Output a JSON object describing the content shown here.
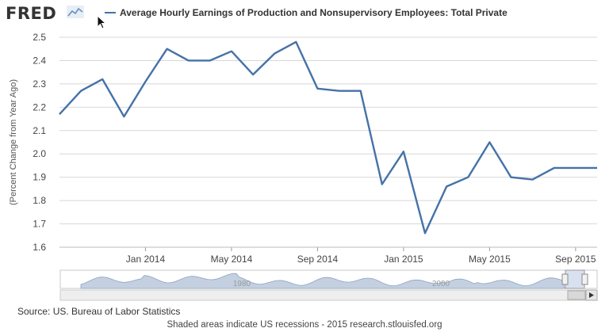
{
  "header": {
    "logo_text": "FRED"
  },
  "legend": {
    "label": "Average Hourly Earnings of Production and Nonsupervisory Employees: Total Private"
  },
  "navigator": {
    "labels": [
      "1980",
      "2000"
    ]
  },
  "footer": {
    "source": "Source: US. Bureau of Labor Statistics",
    "footnote": "Shaded areas indicate US recessions - 2015 research.stlouisfed.org"
  },
  "colors": {
    "series": "#4572a7",
    "grid": "#d8d8d8",
    "navigator_fill": "#c4d0e0"
  },
  "chart_data": {
    "type": "line",
    "ylabel": "(Percent Change from Year Ago)",
    "ylim": [
      1.6,
      2.5
    ],
    "yticks": [
      "1.6",
      "1.7",
      "1.8",
      "1.9",
      "2.0",
      "2.1",
      "2.2",
      "2.3",
      "2.4",
      "2.5"
    ],
    "xticks": [
      "Jan 2014",
      "May 2014",
      "Sep 2014",
      "Jan 2015",
      "May 2015",
      "Sep 2015"
    ],
    "x": [
      "2013-09",
      "2013-10",
      "2013-11",
      "2013-12",
      "2014-01",
      "2014-02",
      "2014-03",
      "2014-04",
      "2014-05",
      "2014-06",
      "2014-07",
      "2014-08",
      "2014-09",
      "2014-10",
      "2014-11",
      "2014-12",
      "2015-01",
      "2015-02",
      "2015-03",
      "2015-04",
      "2015-05",
      "2015-06",
      "2015-07",
      "2015-08",
      "2015-09",
      "2015-10"
    ],
    "series": [
      {
        "name": "Average Hourly Earnings of Production and Nonsupervisory Employees: Total Private",
        "values": [
          2.17,
          2.27,
          2.32,
          2.16,
          2.31,
          2.45,
          2.4,
          2.4,
          2.44,
          2.34,
          2.43,
          2.48,
          2.28,
          2.27,
          2.27,
          1.87,
          2.01,
          1.66,
          1.86,
          1.9,
          2.05,
          1.9,
          1.89,
          1.94,
          1.94,
          1.94
        ]
      }
    ],
    "grid": true,
    "legend_position": "top"
  }
}
